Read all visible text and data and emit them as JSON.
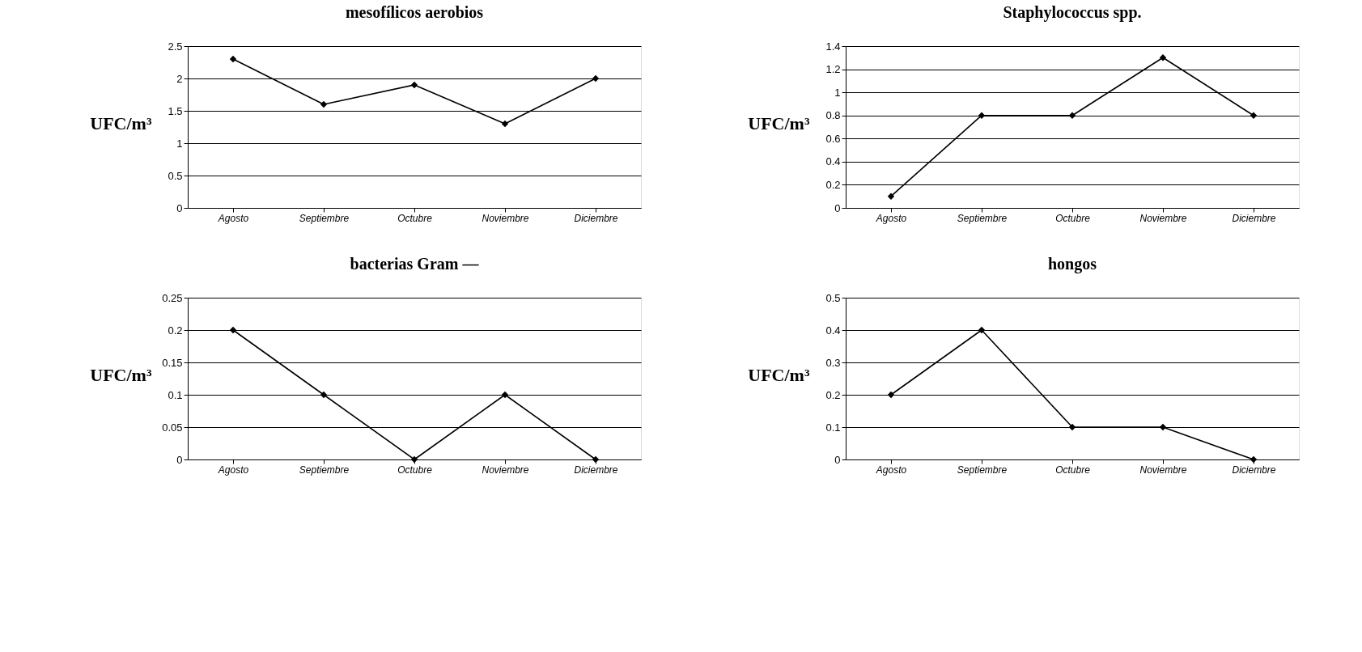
{
  "chart_data": [
    {
      "type": "line",
      "title": "mesofílicos aerobios",
      "ylabel": "UFC/m³",
      "categories": [
        "Agosto",
        "Septiembre",
        "Octubre",
        "Noviembre",
        "Diciembre"
      ],
      "series": [
        {
          "color": "#000000",
          "values": [
            2.3,
            1.6,
            1.9,
            1.3,
            2.0
          ]
        }
      ],
      "ylim": [
        0,
        2.5
      ],
      "yticks": [
        0,
        0.5,
        1,
        1.5,
        2,
        2.5
      ],
      "grid": "y",
      "marker": "diamond",
      "line_style": "solid"
    },
    {
      "type": "line",
      "title": "Staphylococcus spp.",
      "ylabel": "UFC/m³",
      "categories": [
        "Agosto",
        "Septiembre",
        "Octubre",
        "Noviembre",
        "Diciembre"
      ],
      "series": [
        {
          "color": "#000000",
          "values": [
            0.1,
            0.8,
            0.8,
            1.3,
            0.8
          ]
        }
      ],
      "ylim": [
        0,
        1.4
      ],
      "yticks": [
        0,
        0.2,
        0.4,
        0.6,
        0.8,
        1,
        1.2,
        1.4
      ],
      "grid": "y",
      "marker": "diamond",
      "line_style": "solid"
    },
    {
      "type": "line",
      "title": "bacterias Gram —",
      "ylabel": "UFC/m³",
      "categories": [
        "Agosto",
        "Septiembre",
        "Octubre",
        "Noviembre",
        "Diciembre"
      ],
      "series": [
        {
          "color": "#000000",
          "values": [
            0.2,
            0.1,
            0,
            0.1,
            0
          ]
        }
      ],
      "ylim": [
        0,
        0.25
      ],
      "yticks": [
        0,
        0.05,
        0.1,
        0.15,
        0.2,
        0.25
      ],
      "grid": "y",
      "marker": "diamond",
      "line_style": "solid"
    },
    {
      "type": "line",
      "title": "hongos",
      "ylabel": "UFC/m³",
      "categories": [
        "Agosto",
        "Septiembre",
        "Octubre",
        "Noviembre",
        "Diciembre"
      ],
      "series": [
        {
          "color": "#000000",
          "values": [
            0.2,
            0.4,
            0.1,
            0.1,
            0
          ]
        }
      ],
      "ylim": [
        0,
        0.5
      ],
      "yticks": [
        0,
        0.1,
        0.2,
        0.3,
        0.4,
        0.5
      ],
      "grid": "y",
      "marker": "diamond",
      "line_style": "solid"
    }
  ]
}
